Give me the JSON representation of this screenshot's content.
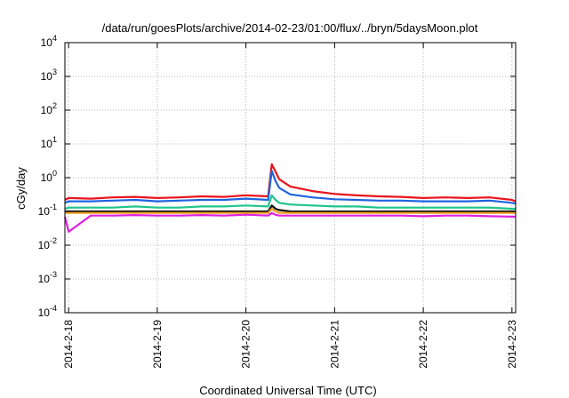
{
  "chart_data": {
    "type": "line",
    "title": "/data/run/goesPlots/archive/2014-02-23/01:00/flux/../bryn/5daysMoon.plot",
    "xlabel": "Coordinated Universal Time (UTC)",
    "ylabel": "cGy/day",
    "yscale": "log",
    "ylim": [
      0.0001,
      10000
    ],
    "y_ticks": [
      {
        "base": "10",
        "exp": "-4",
        "value": 0.0001
      },
      {
        "base": "10",
        "exp": "-3",
        "value": 0.001
      },
      {
        "base": "10",
        "exp": "-2",
        "value": 0.01
      },
      {
        "base": "10",
        "exp": "-1",
        "value": 0.1
      },
      {
        "base": "10",
        "exp": "0",
        "value": 1
      },
      {
        "base": "10",
        "exp": "1",
        "value": 10
      },
      {
        "base": "10",
        "exp": "2",
        "value": 100
      },
      {
        "base": "10",
        "exp": "3",
        "value": 1000
      },
      {
        "base": "10",
        "exp": "4",
        "value": 10000
      }
    ],
    "xlim": [
      "2014-02-17T23:00",
      "2014-02-23T01:00"
    ],
    "x_ticks": [
      "2014-2-18",
      "2014-2-19",
      "2014-2-20",
      "2014-2-21",
      "2014-2-22",
      "2014-2-23"
    ],
    "grid": true,
    "x": [
      "2014-02-17T23:00",
      "2014-02-18T00:00",
      "2014-02-18T06:00",
      "2014-02-18T12:00",
      "2014-02-18T18:00",
      "2014-02-19T00:00",
      "2014-02-19T06:00",
      "2014-02-19T12:00",
      "2014-02-19T18:00",
      "2014-02-20T00:00",
      "2014-02-20T06:00",
      "2014-02-20T07:00",
      "2014-02-20T08:00",
      "2014-02-20T09:00",
      "2014-02-20T12:00",
      "2014-02-20T18:00",
      "2014-02-21T00:00",
      "2014-02-21T06:00",
      "2014-02-21T12:00",
      "2014-02-21T18:00",
      "2014-02-22T00:00",
      "2014-02-22T06:00",
      "2014-02-22T12:00",
      "2014-02-22T18:00",
      "2014-02-23T00:00",
      "2014-02-23T01:00"
    ],
    "series": [
      {
        "color": "#e8141c",
        "values": [
          0.22,
          0.25,
          0.24,
          0.26,
          0.27,
          0.25,
          0.26,
          0.28,
          0.27,
          0.3,
          0.28,
          2.5,
          1.5,
          0.9,
          0.55,
          0.4,
          0.33,
          0.3,
          0.28,
          0.27,
          0.25,
          0.26,
          0.25,
          0.26,
          0.22,
          0.2
        ]
      },
      {
        "color": "#1f63e0",
        "values": [
          0.18,
          0.2,
          0.2,
          0.21,
          0.22,
          0.2,
          0.21,
          0.22,
          0.22,
          0.24,
          0.22,
          1.6,
          0.8,
          0.5,
          0.32,
          0.26,
          0.23,
          0.22,
          0.21,
          0.21,
          0.2,
          0.2,
          0.2,
          0.21,
          0.18,
          0.17
        ]
      },
      {
        "color": "#1fc48c",
        "values": [
          0.12,
          0.13,
          0.13,
          0.13,
          0.14,
          0.13,
          0.13,
          0.14,
          0.14,
          0.15,
          0.14,
          0.3,
          0.22,
          0.18,
          0.16,
          0.15,
          0.14,
          0.14,
          0.13,
          0.13,
          0.13,
          0.13,
          0.13,
          0.13,
          0.12,
          0.12
        ]
      },
      {
        "color": "#111111",
        "values": [
          0.1,
          0.1,
          0.1,
          0.1,
          0.1,
          0.1,
          0.1,
          0.1,
          0.1,
          0.1,
          0.1,
          0.15,
          0.12,
          0.11,
          0.1,
          0.1,
          0.1,
          0.1,
          0.1,
          0.1,
          0.1,
          0.1,
          0.1,
          0.1,
          0.1,
          0.1
        ]
      },
      {
        "color": "#f0a020",
        "values": [
          0.09,
          0.09,
          0.09,
          0.09,
          0.09,
          0.09,
          0.09,
          0.09,
          0.09,
          0.09,
          0.09,
          0.12,
          0.1,
          0.09,
          0.09,
          0.09,
          0.09,
          0.09,
          0.09,
          0.09,
          0.09,
          0.09,
          0.09,
          0.09,
          0.09,
          0.09
        ]
      },
      {
        "color": "#e020e0",
        "values": [
          0.07,
          0.025,
          0.075,
          0.075,
          0.078,
          0.075,
          0.075,
          0.078,
          0.075,
          0.08,
          0.075,
          0.09,
          0.08,
          0.075,
          0.075,
          0.075,
          0.075,
          0.075,
          0.075,
          0.075,
          0.072,
          0.075,
          0.075,
          0.072,
          0.07,
          0.07
        ]
      }
    ]
  }
}
